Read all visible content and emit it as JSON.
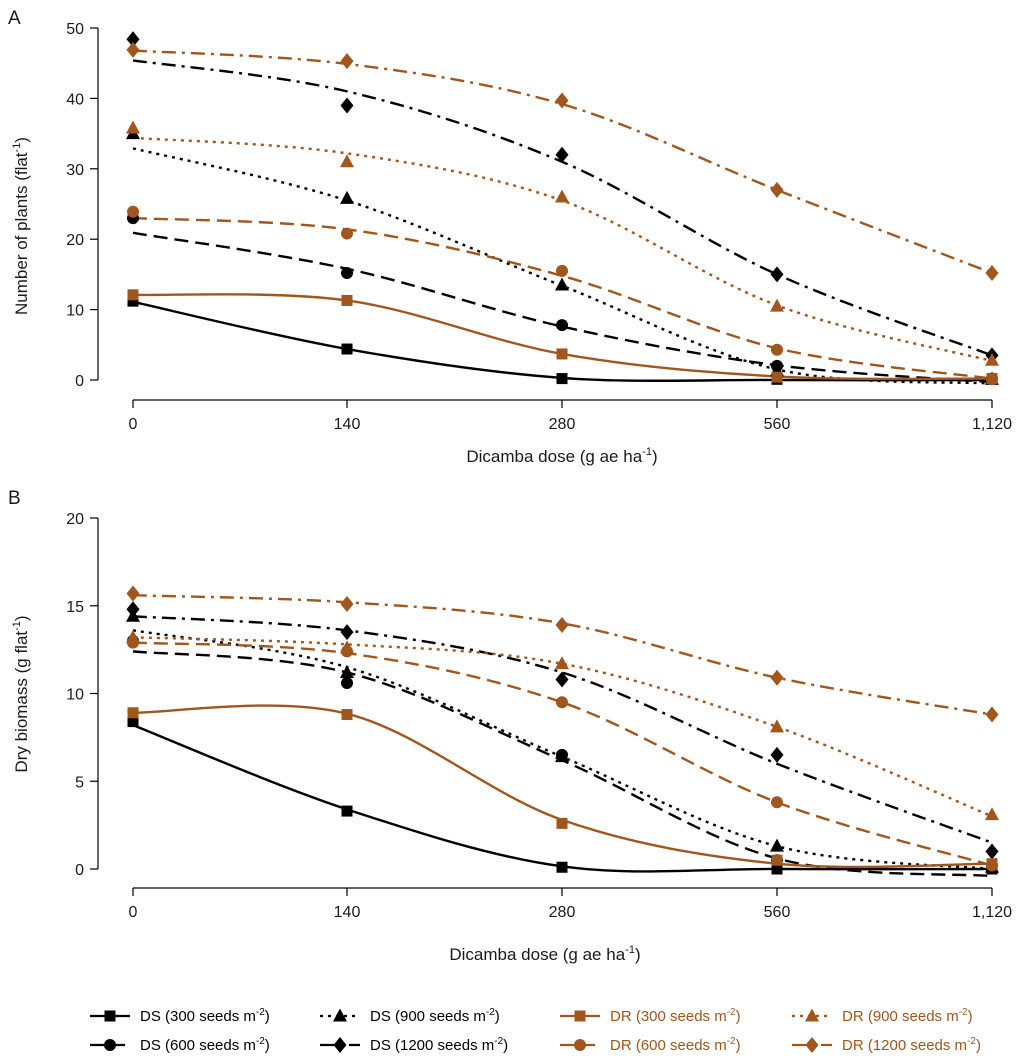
{
  "chart_data": [
    {
      "type": "line",
      "panel_label": "A",
      "xlabel": "Dicamba dose (g ae ha",
      "xlabel_sup": "-1",
      "xlabel_suffix": ")",
      "ylabel": "Number of plants (flat",
      "ylabel_sup": "-1",
      "ylabel_suffix": ")",
      "x_tick_labels": [
        "0",
        "140",
        "280",
        "560",
        "1,120"
      ],
      "y_ticks": [
        0,
        10,
        20,
        30,
        40,
        50
      ],
      "ylim": [
        0,
        50
      ],
      "grid": false,
      "series": [
        {
          "key": "ds300",
          "points": [
            11.2,
            4.4,
            0.2,
            0.1,
            0.1
          ],
          "curve": [
            11.1,
            4.4,
            0.3,
            0.0,
            0.0
          ]
        },
        {
          "key": "ds600",
          "points": [
            23.0,
            15.2,
            7.8,
            2.0,
            0.2
          ],
          "curve": [
            20.9,
            15.8,
            7.6,
            2.1,
            -0.3
          ]
        },
        {
          "key": "ds900",
          "points": [
            35.0,
            25.8,
            13.5,
            1.3,
            0.1
          ],
          "curve": [
            32.9,
            25.5,
            13.4,
            1.5,
            -0.5
          ]
        },
        {
          "key": "ds1200",
          "points": [
            48.4,
            39.0,
            32.0,
            15.0,
            3.5
          ],
          "curve": [
            45.4,
            41.0,
            31.0,
            15.0,
            3.5
          ]
        },
        {
          "key": "dr300",
          "points": [
            12.1,
            11.3,
            3.7,
            0.4,
            0.2
          ],
          "curve": [
            12.1,
            11.3,
            3.7,
            0.5,
            0.2
          ]
        },
        {
          "key": "dr600",
          "points": [
            23.9,
            20.8,
            15.5,
            4.3,
            0.1
          ],
          "curve": [
            23.0,
            21.4,
            14.8,
            4.5,
            0.2
          ]
        },
        {
          "key": "dr900",
          "points": [
            35.8,
            31.0,
            26.0,
            10.5,
            2.8
          ],
          "curve": [
            34.4,
            32.2,
            25.5,
            10.6,
            2.7
          ]
        },
        {
          "key": "dr1200",
          "points": [
            46.9,
            45.3,
            39.7,
            27.0,
            15.2
          ],
          "curve": [
            46.8,
            44.9,
            39.2,
            27.0,
            15.2
          ]
        }
      ]
    },
    {
      "type": "line",
      "panel_label": "B",
      "xlabel": "Dicamba dose (g ae ha",
      "xlabel_sup": "-1",
      "xlabel_suffix": ")",
      "ylabel": "Dry biomass (g flat",
      "ylabel_sup": "-1",
      "ylabel_suffix": ")",
      "x_tick_labels": [
        "0",
        "140",
        "280",
        "560",
        "1,120"
      ],
      "y_ticks": [
        0,
        5,
        10,
        15,
        20
      ],
      "ylim": [
        0,
        20
      ],
      "grid": false,
      "series": [
        {
          "key": "ds300",
          "points": [
            8.4,
            3.3,
            0.1,
            0.0,
            0.0
          ],
          "curve": [
            8.2,
            3.4,
            0.15,
            0.0,
            0.0
          ]
        },
        {
          "key": "ds600",
          "points": [
            13.0,
            10.6,
            6.5,
            0.5,
            0.2
          ],
          "curve": [
            12.4,
            11.2,
            6.2,
            0.6,
            -0.4
          ]
        },
        {
          "key": "ds900",
          "points": [
            14.4,
            11.2,
            6.4,
            1.3,
            0.1
          ],
          "curve": [
            13.6,
            11.5,
            6.4,
            1.3,
            0.0
          ]
        },
        {
          "key": "ds1200",
          "points": [
            14.8,
            13.5,
            10.8,
            6.5,
            1.0
          ],
          "curve": [
            14.4,
            13.6,
            11.2,
            6.0,
            1.5
          ]
        },
        {
          "key": "dr300",
          "points": [
            8.9,
            8.8,
            2.6,
            0.5,
            0.3
          ],
          "curve": [
            8.9,
            8.85,
            2.8,
            0.3,
            0.3
          ]
        },
        {
          "key": "dr600",
          "points": [
            12.9,
            12.4,
            9.5,
            3.8,
            0.2
          ],
          "curve": [
            12.9,
            12.3,
            9.5,
            3.8,
            0.2
          ]
        },
        {
          "key": "dr900",
          "points": [
            13.2,
            12.6,
            11.7,
            8.1,
            3.1
          ],
          "curve": [
            13.2,
            12.8,
            11.7,
            8.1,
            3.0
          ]
        },
        {
          "key": "dr1200",
          "points": [
            15.7,
            15.1,
            13.9,
            10.9,
            8.8
          ],
          "curve": [
            15.6,
            15.2,
            14.0,
            10.9,
            8.8
          ]
        }
      ]
    }
  ],
  "legend": [
    {
      "key": "ds300",
      "prefix": "DS (300 seeds m",
      "sup": "-2",
      "suffix": ")",
      "color": "#000000",
      "dash": "solid",
      "marker": "square"
    },
    {
      "key": "ds900",
      "prefix": "DS (900 seeds m",
      "sup": "-2",
      "suffix": ")",
      "color": "#000000",
      "dash": "dot",
      "marker": "triangle"
    },
    {
      "key": "dr300",
      "prefix": "DR (300 seeds m",
      "sup": "-2",
      "suffix": ")",
      "color": "#a0561d",
      "dash": "solid",
      "marker": "square"
    },
    {
      "key": "dr900",
      "prefix": "DR (900 seeds m",
      "sup": "-2",
      "suffix": ")",
      "color": "#a0561d",
      "dash": "dot",
      "marker": "triangle"
    },
    {
      "key": "ds600",
      "prefix": "DS (600 seeds m",
      "sup": "-2",
      "suffix": ")",
      "color": "#000000",
      "dash": "dash",
      "marker": "circle"
    },
    {
      "key": "ds1200",
      "prefix": "DS (1200 seeds m",
      "sup": "-2",
      "suffix": ")",
      "color": "#000000",
      "dash": "dashdot",
      "marker": "diamond"
    },
    {
      "key": "dr600",
      "prefix": "DR (600 seeds m",
      "sup": "-2",
      "suffix": ")",
      "color": "#a0561d",
      "dash": "dash",
      "marker": "circle"
    },
    {
      "key": "dr1200",
      "prefix": "DR (1200 seeds m",
      "sup": "-2",
      "suffix": ")",
      "color": "#a0561d",
      "dash": "dashdot",
      "marker": "diamond"
    }
  ]
}
